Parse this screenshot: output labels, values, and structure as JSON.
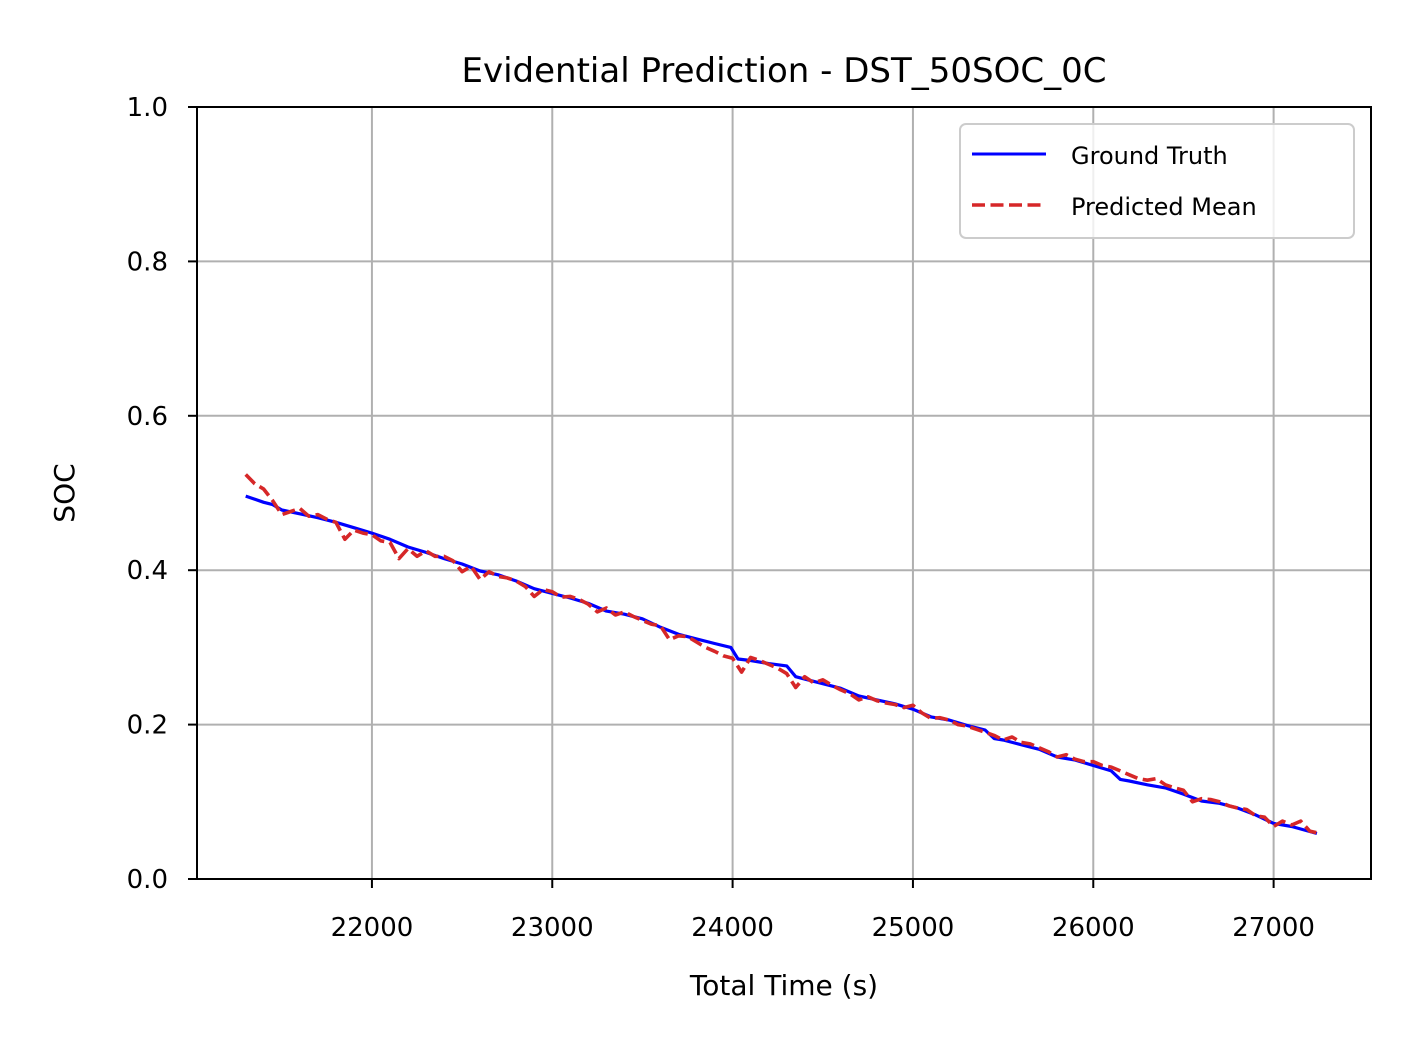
{
  "chart_data": {
    "type": "line",
    "title": "Evidential Prediction - DST_50SOC_0C",
    "xlabel": "Total Time (s)",
    "ylabel": "SOC",
    "xlim": [
      21030,
      27540
    ],
    "ylim": [
      0.0,
      1.0
    ],
    "xticks": [
      22000,
      23000,
      24000,
      25000,
      26000,
      27000
    ],
    "yticks": [
      0.0,
      0.2,
      0.4,
      0.6,
      0.8,
      1.0
    ],
    "xtick_labels": [
      "22000",
      "23000",
      "24000",
      "25000",
      "26000",
      "27000"
    ],
    "ytick_labels": [
      "0.0",
      "0.2",
      "0.4",
      "0.6",
      "0.8",
      "1.0"
    ],
    "grid": true,
    "legend_position": "top-right",
    "series": [
      {
        "name": "Ground Truth",
        "color": "#0000ff",
        "style": "solid",
        "x": [
          21300,
          21400,
          21450,
          21500,
          21600,
          21700,
          21800,
          21900,
          22000,
          22100,
          22200,
          22300,
          22400,
          22500,
          22600,
          22700,
          22800,
          22900,
          23000,
          23100,
          23200,
          23300,
          23400,
          23500,
          23600,
          23700,
          23800,
          23900,
          23990,
          24030,
          24100,
          24200,
          24300,
          24350,
          24400,
          24500,
          24600,
          24700,
          24800,
          24900,
          25000,
          25100,
          25200,
          25300,
          25400,
          25450,
          25500,
          25600,
          25700,
          25800,
          25900,
          26000,
          26100,
          26150,
          26200,
          26300,
          26400,
          26500,
          26600,
          26700,
          26800,
          26900,
          27000,
          27100,
          27240
        ],
        "y": [
          0.496,
          0.488,
          0.485,
          0.478,
          0.473,
          0.468,
          0.462,
          0.455,
          0.448,
          0.44,
          0.43,
          0.423,
          0.415,
          0.408,
          0.399,
          0.394,
          0.386,
          0.376,
          0.37,
          0.364,
          0.357,
          0.347,
          0.343,
          0.337,
          0.326,
          0.317,
          0.311,
          0.305,
          0.3,
          0.285,
          0.283,
          0.279,
          0.276,
          0.262,
          0.259,
          0.253,
          0.247,
          0.237,
          0.232,
          0.227,
          0.22,
          0.21,
          0.206,
          0.199,
          0.193,
          0.182,
          0.18,
          0.174,
          0.168,
          0.158,
          0.154,
          0.147,
          0.14,
          0.129,
          0.127,
          0.122,
          0.118,
          0.11,
          0.101,
          0.098,
          0.092,
          0.083,
          0.072,
          0.068,
          0.059
        ]
      },
      {
        "name": "Predicted Mean",
        "color": "#d62728",
        "style": "dashed",
        "x": [
          21300,
          21350,
          21400,
          21450,
          21500,
          21550,
          21600,
          21650,
          21700,
          21750,
          21800,
          21850,
          21900,
          21950,
          22000,
          22050,
          22100,
          22150,
          22200,
          22250,
          22300,
          22350,
          22400,
          22450,
          22500,
          22550,
          22600,
          22650,
          22700,
          22750,
          22800,
          22850,
          22900,
          22950,
          23000,
          23050,
          23100,
          23150,
          23200,
          23250,
          23300,
          23350,
          23400,
          23450,
          23500,
          23550,
          23600,
          23650,
          23700,
          23750,
          23800,
          23850,
          23900,
          23950,
          24000,
          24050,
          24100,
          24150,
          24200,
          24250,
          24300,
          24350,
          24400,
          24450,
          24500,
          24550,
          24600,
          24650,
          24700,
          24750,
          24800,
          24850,
          24900,
          24950,
          25000,
          25050,
          25100,
          25150,
          25200,
          25250,
          25300,
          25350,
          25400,
          25450,
          25500,
          25550,
          25600,
          25650,
          25700,
          25750,
          25800,
          25850,
          25900,
          25950,
          26000,
          26050,
          26100,
          26150,
          26200,
          26250,
          26300,
          26350,
          26400,
          26450,
          26500,
          26550,
          26600,
          26650,
          26700,
          26750,
          26800,
          26850,
          26900,
          26950,
          27000,
          27050,
          27100,
          27150,
          27200,
          27240
        ],
        "y": [
          0.524,
          0.512,
          0.505,
          0.49,
          0.472,
          0.476,
          0.48,
          0.47,
          0.472,
          0.466,
          0.462,
          0.44,
          0.452,
          0.448,
          0.446,
          0.438,
          0.436,
          0.415,
          0.428,
          0.418,
          0.425,
          0.418,
          0.418,
          0.412,
          0.398,
          0.405,
          0.388,
          0.398,
          0.392,
          0.39,
          0.386,
          0.379,
          0.366,
          0.375,
          0.372,
          0.365,
          0.366,
          0.362,
          0.356,
          0.346,
          0.351,
          0.342,
          0.346,
          0.34,
          0.335,
          0.33,
          0.328,
          0.31,
          0.315,
          0.314,
          0.307,
          0.3,
          0.295,
          0.289,
          0.286,
          0.268,
          0.287,
          0.283,
          0.278,
          0.273,
          0.266,
          0.248,
          0.262,
          0.254,
          0.258,
          0.251,
          0.245,
          0.24,
          0.232,
          0.236,
          0.231,
          0.228,
          0.226,
          0.222,
          0.225,
          0.215,
          0.208,
          0.209,
          0.206,
          0.2,
          0.198,
          0.194,
          0.19,
          0.186,
          0.18,
          0.184,
          0.177,
          0.175,
          0.17,
          0.165,
          0.158,
          0.161,
          0.155,
          0.152,
          0.152,
          0.147,
          0.145,
          0.14,
          0.135,
          0.13,
          0.128,
          0.13,
          0.122,
          0.118,
          0.115,
          0.1,
          0.104,
          0.103,
          0.1,
          0.095,
          0.092,
          0.09,
          0.082,
          0.08,
          0.068,
          0.075,
          0.07,
          0.075,
          0.062,
          0.06
        ]
      }
    ]
  }
}
